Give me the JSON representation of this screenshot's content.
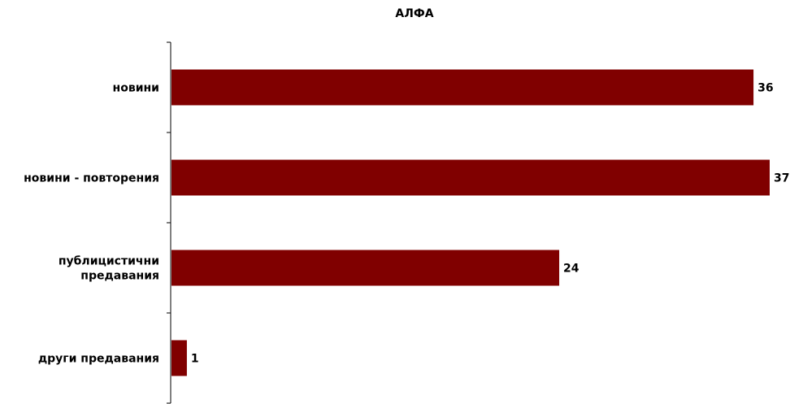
{
  "chart_data": {
    "type": "bar",
    "orientation": "horizontal",
    "title": "АЛФА",
    "categories": [
      [
        "новини"
      ],
      [
        "новини - повторения"
      ],
      [
        "публицистични",
        "предавания"
      ],
      [
        "други предавания"
      ]
    ],
    "values": [
      36,
      37,
      24,
      1
    ],
    "xlim": [
      0,
      37
    ],
    "grid": false,
    "legend": "none",
    "bar_color": "#800000"
  }
}
